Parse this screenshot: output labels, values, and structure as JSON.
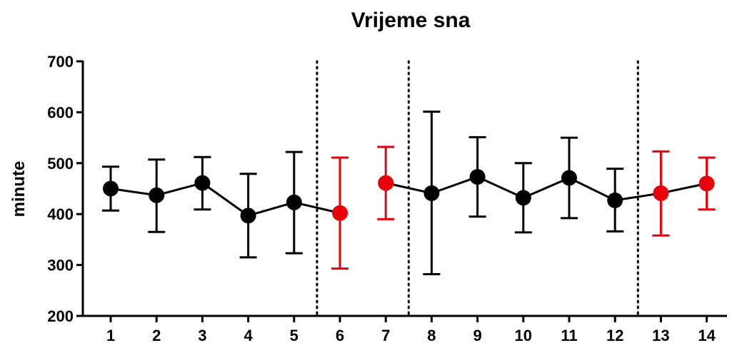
{
  "chart_data": {
    "type": "scatter",
    "title": "Vrijeme sna",
    "xlabel": "",
    "ylabel": "minute",
    "ylim": [
      200,
      700
    ],
    "y_ticks": [
      200,
      300,
      400,
      500,
      600,
      700
    ],
    "x": [
      1,
      2,
      3,
      4,
      5,
      6,
      7,
      8,
      9,
      10,
      11,
      12,
      13,
      14
    ],
    "x_tick_labels": [
      "1",
      "2",
      "3",
      "4",
      "5",
      "6",
      "7",
      "8",
      "9",
      "10",
      "11",
      "12",
      "13",
      "14"
    ],
    "means": [
      450,
      437,
      461,
      397,
      423,
      402,
      461,
      441,
      473,
      432,
      471,
      427,
      441,
      460
    ],
    "upper": [
      493,
      507,
      512,
      479,
      522,
      511,
      532,
      601,
      551,
      500,
      550,
      489,
      523,
      511
    ],
    "lower": [
      407,
      365,
      409,
      315,
      323,
      293,
      390,
      282,
      395,
      364,
      392,
      366,
      358,
      409
    ],
    "colors": [
      "#000000",
      "#000000",
      "#000000",
      "#000000",
      "#000000",
      "#e8000b",
      "#e8000b",
      "#000000",
      "#000000",
      "#000000",
      "#000000",
      "#000000",
      "#e8000b",
      "#e8000b"
    ],
    "line_segments": [
      [
        1,
        6
      ],
      [
        7,
        14
      ]
    ],
    "vertical_dividers_between": [
      5.5,
      7.5,
      12.5
    ],
    "grid": false,
    "legend": "none"
  }
}
